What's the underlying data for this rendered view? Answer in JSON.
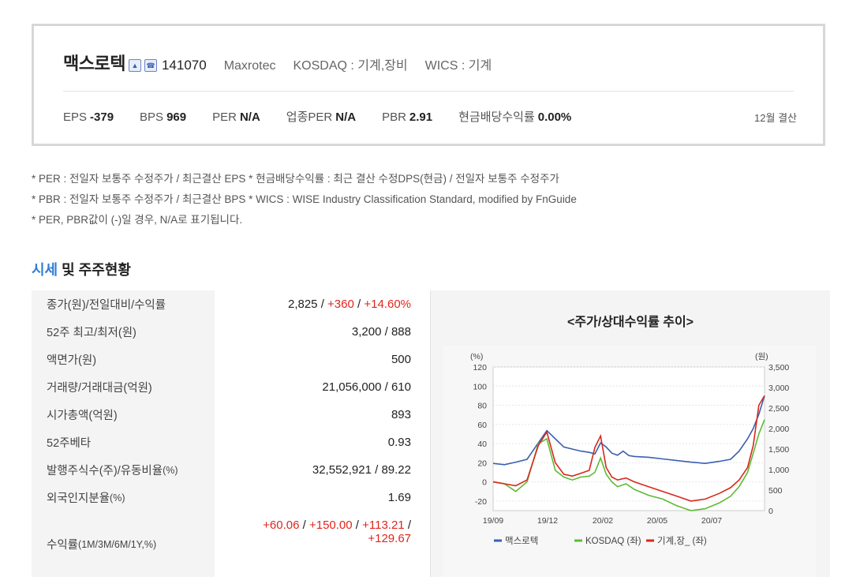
{
  "company": {
    "name": "맥스로텍",
    "code": "141070",
    "eng_name": "Maxrotec",
    "market": "KOSDAQ : 기계,장비",
    "wics": "WICS : 기계",
    "icons": [
      "building-icon",
      "phone-icon"
    ]
  },
  "metrics": [
    {
      "label": "EPS",
      "value": "-379"
    },
    {
      "label": "BPS",
      "value": "969"
    },
    {
      "label": "PER",
      "value": "N/A"
    },
    {
      "label": "업종PER",
      "value": "N/A"
    },
    {
      "label": "PBR",
      "value": "2.91"
    },
    {
      "label": "현금배당수익률",
      "value": "0.00%"
    }
  ],
  "settlement": "12월 결산",
  "notes": [
    "* PER : 전일자 보통주 수정주가 / 최근결산 EPS * 현금배당수익률 : 최근 결산 수정DPS(현금) / 전일자 보통주 수정주가",
    "* PBR : 전일자 보통주 수정주가 / 최근결산 BPS * WICS : WISE Industry Classification Standard, modified by FnGuide",
    "* PER, PBR값이 (-)일 경우, N/A로 표기됩니다."
  ],
  "section": {
    "title_highlight": "시세",
    "title_rest": " 및 주주현황"
  },
  "table": {
    "r0": {
      "label": "종가(원)/전일대비/수익률",
      "v1": "2,825",
      "v2": "+360",
      "v3": "+14.60%"
    },
    "r1": {
      "label": "52주 최고/최저(원)",
      "value": "3,200 / 888"
    },
    "r2": {
      "label": "액면가(원)",
      "value": "500"
    },
    "r3": {
      "label": "거래량/거래대금(억원)",
      "value": "21,056,000 / 610"
    },
    "r4": {
      "label": "시가총액(억원)",
      "value": "893"
    },
    "r5": {
      "label": "52주베타",
      "value": "0.93"
    },
    "r6": {
      "label": "발행주식수(주)/유동비율",
      "label_small": "(%)",
      "value": "32,552,921 / 89.22"
    },
    "r7": {
      "label": "외국인지분율",
      "label_small": "(%)",
      "value": "1.69"
    },
    "r8": {
      "label": "수익률",
      "label_small": "(1M/3M/6M/1Y,%)",
      "v1": "+60.06",
      "v2": "+150.00",
      "v3": "+113.21",
      "v4": "+129.67"
    }
  },
  "chart_title": "<주가/상대수익률 추이>",
  "chart_data": {
    "type": "line",
    "title": "<주가/상대수익률 추이>",
    "left_axis_unit": "(%)",
    "right_axis_unit": "(원)",
    "left_ticks": [
      "120",
      "100",
      "80",
      "60",
      "40",
      "20",
      "0",
      "-20"
    ],
    "right_ticks": [
      "3,500",
      "3,000",
      "2,500",
      "2,000",
      "1,500",
      "1,000",
      "500",
      "0"
    ],
    "x_ticks": [
      "19/09",
      "19/12",
      "20/02",
      "20/05",
      "20/07"
    ],
    "ylim_left": [
      -30,
      120
    ],
    "ylim_right": [
      0,
      3500
    ],
    "legend_placement": "bottom",
    "series": [
      {
        "name": "맥스로텍",
        "axis": "right",
        "color": "#3a5fb0",
        "points": [
          [
            0,
            1150
          ],
          [
            4,
            1120
          ],
          [
            8,
            1180
          ],
          [
            12,
            1250
          ],
          [
            16,
            1650
          ],
          [
            19,
            1950
          ],
          [
            22,
            1750
          ],
          [
            25,
            1550
          ],
          [
            28,
            1500
          ],
          [
            31,
            1450
          ],
          [
            34,
            1420
          ],
          [
            36,
            1380
          ],
          [
            38,
            1650
          ],
          [
            40,
            1550
          ],
          [
            42,
            1400
          ],
          [
            44,
            1350
          ],
          [
            46,
            1450
          ],
          [
            48,
            1340
          ],
          [
            50,
            1320
          ],
          [
            55,
            1300
          ],
          [
            60,
            1260
          ],
          [
            65,
            1220
          ],
          [
            70,
            1180
          ],
          [
            75,
            1150
          ],
          [
            80,
            1200
          ],
          [
            84,
            1250
          ],
          [
            87,
            1450
          ],
          [
            90,
            1750
          ],
          [
            92,
            2000
          ],
          [
            94,
            2350
          ],
          [
            96,
            2800
          ]
        ]
      },
      {
        "name": "KOSDAQ (좌)",
        "axis": "left",
        "color": "#5dbb34",
        "points": [
          [
            0,
            0
          ],
          [
            4,
            -2
          ],
          [
            8,
            -10
          ],
          [
            12,
            0
          ],
          [
            16,
            40
          ],
          [
            19,
            45
          ],
          [
            22,
            12
          ],
          [
            25,
            5
          ],
          [
            28,
            2
          ],
          [
            31,
            5
          ],
          [
            34,
            6
          ],
          [
            36,
            10
          ],
          [
            38,
            25
          ],
          [
            40,
            8
          ],
          [
            42,
            0
          ],
          [
            44,
            -5
          ],
          [
            47,
            -2
          ],
          [
            50,
            -8
          ],
          [
            55,
            -14
          ],
          [
            60,
            -18
          ],
          [
            65,
            -25
          ],
          [
            70,
            -30
          ],
          [
            75,
            -28
          ],
          [
            80,
            -22
          ],
          [
            84,
            -15
          ],
          [
            87,
            -5
          ],
          [
            90,
            10
          ],
          [
            92,
            30
          ],
          [
            94,
            50
          ],
          [
            96,
            65
          ]
        ]
      },
      {
        "name": "기계,장_ (좌)",
        "axis": "left",
        "color": "#d8281b",
        "points": [
          [
            0,
            0
          ],
          [
            4,
            -2
          ],
          [
            8,
            -4
          ],
          [
            12,
            2
          ],
          [
            16,
            38
          ],
          [
            19,
            52
          ],
          [
            22,
            20
          ],
          [
            25,
            8
          ],
          [
            28,
            6
          ],
          [
            31,
            9
          ],
          [
            34,
            12
          ],
          [
            36,
            36
          ],
          [
            38,
            48
          ],
          [
            40,
            15
          ],
          [
            42,
            5
          ],
          [
            44,
            2
          ],
          [
            47,
            4
          ],
          [
            50,
            0
          ],
          [
            55,
            -5
          ],
          [
            60,
            -10
          ],
          [
            65,
            -15
          ],
          [
            70,
            -20
          ],
          [
            75,
            -18
          ],
          [
            80,
            -12
          ],
          [
            84,
            -6
          ],
          [
            87,
            2
          ],
          [
            90,
            15
          ],
          [
            92,
            38
          ],
          [
            94,
            80
          ],
          [
            96,
            90
          ]
        ]
      }
    ]
  }
}
